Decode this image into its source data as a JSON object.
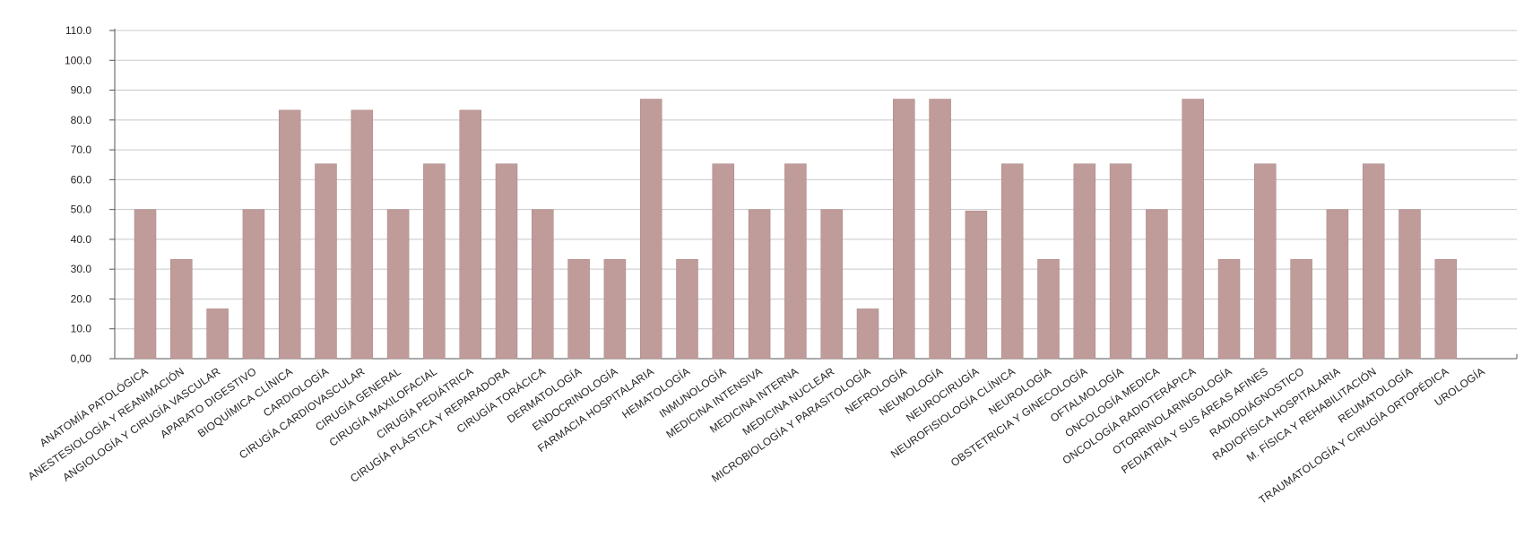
{
  "chart_data": {
    "type": "bar",
    "title": "",
    "xlabel": "",
    "ylabel": "",
    "ylim": [
      0,
      110
    ],
    "yticks": [
      0,
      10,
      20,
      30,
      40,
      50,
      60,
      70,
      80,
      90,
      100,
      110
    ],
    "ytick_labels": [
      "0,00",
      "10.0",
      "20.0",
      "30.0",
      "40.0",
      "50.0",
      "60.0",
      "70.0",
      "80.0",
      "90.0",
      "100.0",
      "110.0"
    ],
    "grid": true,
    "legend": "none",
    "bar_color": "#bf9b99",
    "categories": [
      "ANATOMÍA   PATOLÓGICA",
      "ANESTESIOLOGÍA  Y  REANIMACIÓN",
      "ANGIOLOGÍA   Y   CIRUGÍA   VASCULAR",
      "APARATO  DIGESTIVO",
      "BIOQUÍMICA   CLÍNICA",
      "CARDIOLOGÍA",
      "CIRUGÍA  CARDIOVASCULAR",
      "CIRUGÍA   GENERAL",
      "CIRUGÍA   MAXILOFACIAL",
      "CIRUGÍA   PEDIÁTRICA",
      "CIRUGÍA  PLÁSTICA  Y  REPARADORA",
      "CIRUGÍA  TORÁCICA",
      "DERMATOLOGÍA",
      "ENDOCRINOLOGÍA",
      "FARMACIA   HOSPITALARIA",
      "HEMATOLOGÍA",
      "INMUNOLOGÍA",
      "MEDICINA   INTENSIVA",
      "MEDICINA   INTERNA",
      "MEDICINA   NUCLEAR",
      "MICROBIOLOGÍA  Y  PARASITOLOGÍA",
      "NEFROLOGÍA",
      "NEUMOLOGÍA",
      "NEUROCIRUGÍA",
      "NEUROFISIOLOGÍA   CLÍNICA",
      "NEUROLOGÍA",
      "OBSTETRICIA   Y   GINECOLOGÍA",
      "OFTALMOLOGÍA",
      "ONCOLOGÍA   MEDICA",
      "ONCOLOGÍA   RADIOTERÁPICA",
      "OTORRINOLARINGOLOGÍA",
      "PEDIATRÍA  Y  SUS  ÁREAS  AFINES",
      "RADIODIÁGNOSTICO",
      "RADIOFÍSICA   HOSPITALARIA",
      "M. FÍSICA   Y   REHABILITACIÓN",
      "REUMATOLOGÍA",
      "TRAUMATOLOGÍA  Y  CIRUGÍA  ORTOPÉDICA",
      "UROLOGÍA"
    ],
    "values": [
      50.0,
      33.3,
      16.7,
      50.0,
      83.3,
      65.3,
      83.3,
      50.0,
      65.3,
      83.3,
      65.3,
      50.0,
      33.3,
      33.3,
      87.0,
      33.3,
      65.3,
      50.0,
      65.3,
      50.0,
      16.7,
      87.0,
      87.0,
      49.5,
      65.3,
      33.3,
      65.3,
      65.3,
      50.0,
      87.0,
      33.3,
      65.3,
      33.3,
      50.0,
      65.3,
      50.0,
      33.3,
      null
    ]
  }
}
